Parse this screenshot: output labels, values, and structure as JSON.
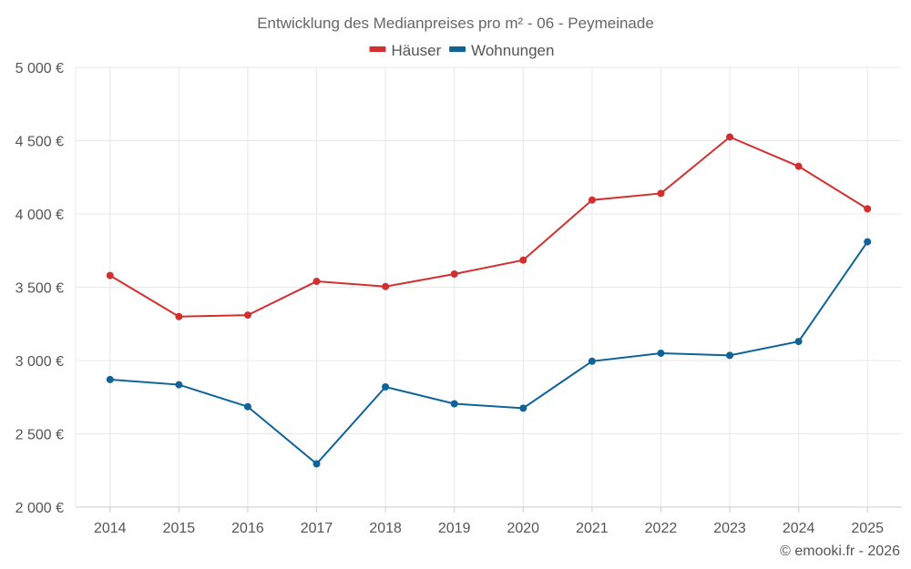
{
  "chart_data": {
    "type": "line",
    "title": "Entwicklung des Medianpreises pro m² - 06 - Peymeinade",
    "xlabel": "",
    "ylabel": "",
    "categories": [
      "2014",
      "2015",
      "2016",
      "2017",
      "2018",
      "2019",
      "2020",
      "2021",
      "2022",
      "2023",
      "2024",
      "2025"
    ],
    "series": [
      {
        "name": "Häuser",
        "color": "#d32f2f",
        "values": [
          3580,
          3300,
          3310,
          3540,
          3505,
          3590,
          3685,
          4095,
          4140,
          4525,
          4325,
          4035
        ]
      },
      {
        "name": "Wohnungen",
        "color": "#0e6399",
        "values": [
          2870,
          2835,
          2685,
          2295,
          2820,
          2705,
          2675,
          2995,
          3050,
          3035,
          3130,
          3810
        ]
      }
    ],
    "ylim": [
      2000,
      5000
    ],
    "yticks": [
      2000,
      2500,
      3000,
      3500,
      4000,
      4500,
      5000
    ],
    "ytick_labels": [
      "2 000 €",
      "2 500 €",
      "3 000 €",
      "3 500 €",
      "4 000 €",
      "4 500 €",
      "5 000 €"
    ],
    "grid": true,
    "legend_position": "top-center"
  },
  "credit": "© emooki.fr - 2026"
}
